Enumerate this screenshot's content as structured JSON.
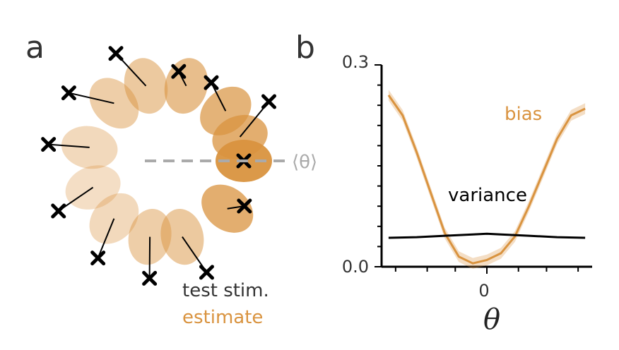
{
  "panels": {
    "a": {
      "letter": "a"
    },
    "b": {
      "letter": "b"
    }
  },
  "legend": {
    "test_stim": "test stim.",
    "estimate": "estimate",
    "mean_label": "⟨θ⟩"
  },
  "colors": {
    "estimate": "#d9933f",
    "stim": "#000000",
    "axis": "#000000",
    "dashed": "#aaaaaa",
    "text": "#333333"
  },
  "chart_data": [
    {
      "type": "scatter",
      "panel": "a",
      "description_units": "stimulus angle in degrees around a circle",
      "points": [
        {
          "stim_angle_deg": 0,
          "est_angle_deg": 0,
          "opacity": 0.95
        },
        {
          "stim_angle_deg": 30,
          "est_angle_deg": 18,
          "opacity": 0.75
        },
        {
          "stim_angle_deg": 60,
          "est_angle_deg": 40,
          "opacity": 0.7
        },
        {
          "stim_angle_deg": 82,
          "est_angle_deg": 75,
          "opacity": 0.6
        },
        {
          "stim_angle_deg": 115,
          "est_angle_deg": 105,
          "opacity": 0.5
        },
        {
          "stim_angle_deg": 145,
          "est_angle_deg": 132,
          "opacity": 0.45
        },
        {
          "stim_angle_deg": 172,
          "est_angle_deg": 170,
          "opacity": 0.35
        },
        {
          "stim_angle_deg": 205,
          "est_angle_deg": 200,
          "opacity": 0.3
        },
        {
          "stim_angle_deg": 235,
          "est_angle_deg": 228,
          "opacity": 0.35
        },
        {
          "stim_angle_deg": 262,
          "est_angle_deg": 258,
          "opacity": 0.45
        },
        {
          "stim_angle_deg": 290,
          "est_angle_deg": 282,
          "opacity": 0.5
        },
        {
          "stim_angle_deg": 330,
          "est_angle_deg": 322,
          "opacity": 0.75
        }
      ]
    },
    {
      "type": "line",
      "panel": "b",
      "xlabel": "θ",
      "ylabel": "",
      "x_ticks": [
        0
      ],
      "x_tick_labels": [
        "0"
      ],
      "y_ticks": [
        0.0,
        0.3
      ],
      "y_tick_labels": [
        "0.0",
        "0.3"
      ],
      "ylim": [
        0.0,
        0.3
      ],
      "xlim": [
        -3.0,
        3.0
      ],
      "grid": false,
      "series": [
        {
          "name": "bias",
          "color": "#d9933f",
          "x": [
            -2.8,
            -2.4,
            -2.0,
            -1.6,
            -1.2,
            -0.8,
            -0.4,
            0.0,
            0.4,
            0.8,
            1.2,
            1.6,
            2.0,
            2.4,
            2.8
          ],
          "y": [
            0.255,
            0.225,
            0.17,
            0.11,
            0.05,
            0.015,
            0.005,
            0.01,
            0.02,
            0.045,
            0.09,
            0.14,
            0.19,
            0.225,
            0.235
          ],
          "band": 0.008
        },
        {
          "name": "variance",
          "color": "#000000",
          "x": [
            -2.8,
            -2.0,
            -1.2,
            -0.4,
            0.0,
            0.4,
            1.2,
            2.0,
            2.8
          ],
          "y": [
            0.043,
            0.044,
            0.046,
            0.048,
            0.049,
            0.048,
            0.046,
            0.044,
            0.043
          ]
        }
      ]
    }
  ]
}
